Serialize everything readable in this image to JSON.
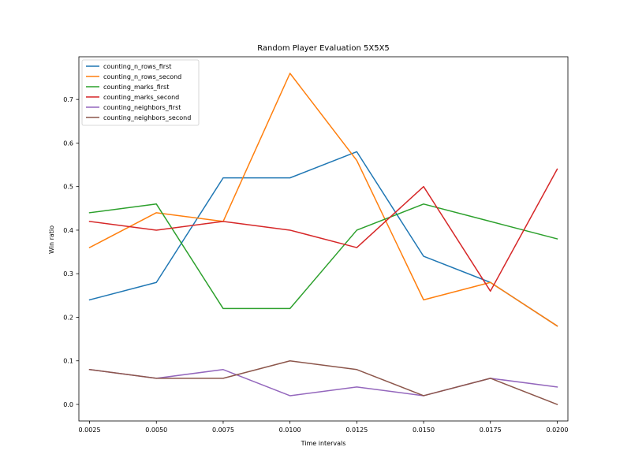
{
  "chart_data": {
    "type": "line",
    "title": "Random Player Evaluation 5X5X5",
    "xlabel": "Time intervals",
    "ylabel": "Win ratio",
    "x": [
      0.0025,
      0.005,
      0.0075,
      0.01,
      0.0125,
      0.015,
      0.0175,
      0.02
    ],
    "x_tick_labels": [
      "0.0025",
      "0.0050",
      "0.0075",
      "0.0100",
      "0.0125",
      "0.0150",
      "0.0175",
      "0.0200"
    ],
    "y_ticks": [
      0.0,
      0.1,
      0.2,
      0.3,
      0.4,
      0.5,
      0.6,
      0.7
    ],
    "y_tick_labels": [
      "0.0",
      "0.1",
      "0.2",
      "0.3",
      "0.4",
      "0.5",
      "0.6",
      "0.7"
    ],
    "xlim": [
      0.0021,
      0.0204
    ],
    "ylim": [
      -0.038,
      0.798
    ],
    "grid": false,
    "legend_position": "top-left",
    "series": [
      {
        "name": "counting_n_rows_first",
        "color": "#1f77b4",
        "values": [
          0.24,
          0.28,
          0.52,
          0.52,
          0.58,
          0.34,
          0.28,
          0.18
        ]
      },
      {
        "name": "counting_n_rows_second",
        "color": "#ff7f0e",
        "values": [
          0.36,
          0.44,
          0.42,
          0.76,
          0.56,
          0.24,
          0.28,
          0.18
        ]
      },
      {
        "name": "counting_marks_first",
        "color": "#2ca02c",
        "values": [
          0.44,
          0.46,
          0.22,
          0.22,
          0.4,
          0.46,
          0.42,
          0.38
        ]
      },
      {
        "name": "counting_marks_second",
        "color": "#d62728",
        "values": [
          0.42,
          0.4,
          0.42,
          0.4,
          0.36,
          0.5,
          0.26,
          0.54
        ]
      },
      {
        "name": "counting_neighbors_first",
        "color": "#9467bd",
        "values": [
          0.08,
          0.06,
          0.08,
          0.02,
          0.04,
          0.02,
          0.06,
          0.04
        ]
      },
      {
        "name": "counting_neighbors_second",
        "color": "#8c564b",
        "values": [
          0.08,
          0.06,
          0.06,
          0.1,
          0.08,
          0.02,
          0.06,
          0.0
        ]
      }
    ]
  }
}
